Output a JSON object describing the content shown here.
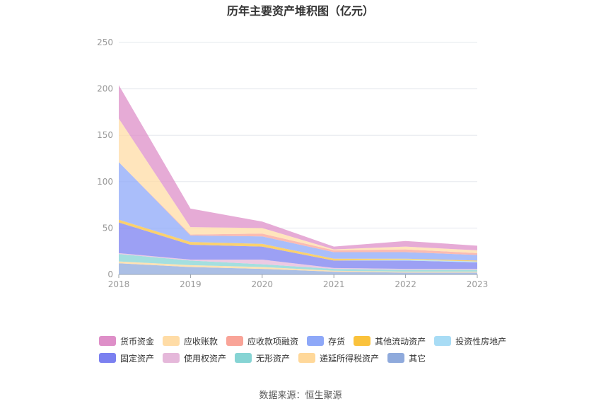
{
  "title": "历年主要资产堆积图（亿元）",
  "source": "数据来源：恒生聚源",
  "chart_data": {
    "type": "area",
    "stacked": true,
    "x": [
      "2018",
      "2019",
      "2020",
      "2021",
      "2022",
      "2023"
    ],
    "ylim": [
      0,
      250
    ],
    "yticks": [
      0,
      50,
      100,
      150,
      200,
      250
    ],
    "grid": true,
    "legend_position": "bottom",
    "series": [
      {
        "name": "其它",
        "color": "#8FAADC",
        "values": [
          12,
          8,
          6,
          3,
          2,
          2
        ]
      },
      {
        "name": "递延所得税资产",
        "color": "#FFD89A",
        "values": [
          2,
          2,
          2,
          1,
          1,
          1
        ]
      },
      {
        "name": "无形资产",
        "color": "#86D4D4",
        "values": [
          8,
          5,
          3,
          2,
          2,
          2
        ]
      },
      {
        "name": "使用权资产",
        "color": "#E5B8DA",
        "values": [
          1,
          1,
          5,
          1,
          1,
          1
        ]
      },
      {
        "name": "固定资产",
        "color": "#7B80F0",
        "values": [
          33,
          16,
          14,
          8,
          9,
          7
        ]
      },
      {
        "name": "投资性房地产",
        "color": "#A8DCF5",
        "values": [
          0,
          0,
          0,
          0,
          1,
          1
        ]
      },
      {
        "name": "其他流动资产",
        "color": "#FAC23C",
        "values": [
          3,
          3,
          3,
          2,
          1,
          1
        ]
      },
      {
        "name": "存货",
        "color": "#8EA8F8",
        "values": [
          62,
          7,
          8,
          7,
          7,
          6
        ]
      },
      {
        "name": "应收款项融资",
        "color": "#F9A498",
        "values": [
          0,
          1,
          3,
          2,
          3,
          2
        ]
      },
      {
        "name": "应收账款",
        "color": "#FFDCA6",
        "values": [
          47,
          8,
          6,
          1,
          3,
          3
        ]
      },
      {
        "name": "货币资金",
        "color": "#DE8FC8",
        "values": [
          36,
          20,
          7,
          3,
          6,
          5
        ]
      }
    ]
  },
  "legend_rows": [
    [
      {
        "label": "货币资金",
        "color": "#DE8FC8"
      },
      {
        "label": "应收账款",
        "color": "#FFDCA6"
      },
      {
        "label": "应收款项融资",
        "color": "#F9A498"
      },
      {
        "label": "存货",
        "color": "#8EA8F8"
      },
      {
        "label": "其他流动资产",
        "color": "#FAC23C"
      },
      {
        "label": "投资性房地产",
        "color": "#A8DCF5"
      }
    ],
    [
      {
        "label": "固定资产",
        "color": "#7B80F0"
      },
      {
        "label": "使用权资产",
        "color": "#E5B8DA"
      },
      {
        "label": "无形资产",
        "color": "#86D4D4"
      },
      {
        "label": "递延所得税资产",
        "color": "#FFD89A"
      },
      {
        "label": "其它",
        "color": "#8FAADC"
      }
    ]
  ]
}
